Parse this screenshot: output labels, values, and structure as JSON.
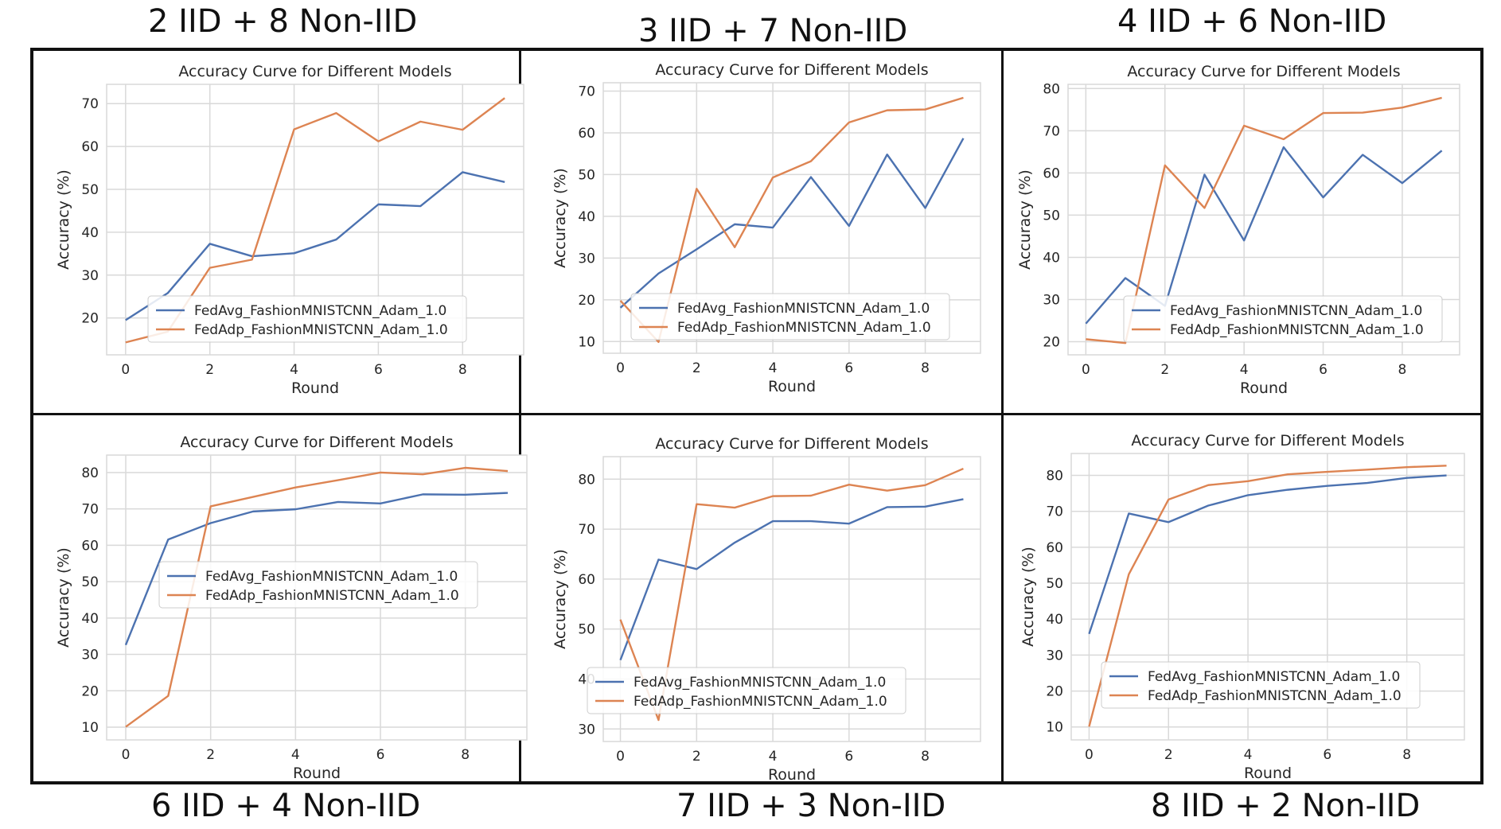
{
  "panel_titles": [
    "2 IID + 8 Non-IID",
    "3 IID + 7 Non-IID",
    "4 IID + 6 Non-IID",
    "6 IID + 4 Non-IID",
    "7 IID + 3 Non-IID",
    "8 IID + 2 Non-IID"
  ],
  "colors": {
    "fedavg": "#4c72b0",
    "fedadp": "#dd8452",
    "grid": "#d9d9d9",
    "frame": "#111111"
  },
  "chart_data": [
    {
      "type": "line",
      "title": "Accuracy Curve for Different Models",
      "xlabel": "Round",
      "ylabel": "Accuracy (%)",
      "x": [
        0,
        1,
        2,
        3,
        4,
        5,
        6,
        7,
        8,
        9
      ],
      "xticks": [
        "0",
        "2",
        "4",
        "6",
        "8"
      ],
      "yticks": [
        "20",
        "30",
        "40",
        "50",
        "60",
        "70"
      ],
      "xlim": [
        -0.45,
        9.45
      ],
      "ylim": [
        11.4,
        74.5
      ],
      "grid": true,
      "legend_position": "lower-right",
      "series": [
        {
          "name": "FedAvg_FashionMNISTCNN_Adam_1.0",
          "values": [
            19.5,
            25.8,
            37.3,
            34.4,
            35.1,
            38.3,
            46.5,
            46.1,
            54.0,
            51.7
          ]
        },
        {
          "name": "FedAdp_FashionMNISTCNN_Adam_1.0",
          "values": [
            14.3,
            16.8,
            31.7,
            33.6,
            64.0,
            67.8,
            61.2,
            65.8,
            63.9,
            71.3
          ]
        }
      ]
    },
    {
      "type": "line",
      "title": "Accuracy Curve for Different Models",
      "xlabel": "Round",
      "ylabel": "Accuracy (%)",
      "x": [
        0,
        1,
        2,
        3,
        4,
        5,
        6,
        7,
        8,
        9
      ],
      "xticks": [
        "0",
        "2",
        "4",
        "6",
        "8"
      ],
      "yticks": [
        "10",
        "20",
        "30",
        "40",
        "50",
        "60",
        "70"
      ],
      "xlim": [
        -0.45,
        9.45
      ],
      "ylim": [
        7.2,
        72.0
      ],
      "grid": true,
      "legend_position": "lower-right",
      "series": [
        {
          "name": "FedAvg_FashionMNISTCNN_Adam_1.0",
          "values": [
            18.1,
            26.3,
            32.1,
            38.1,
            37.3,
            49.4,
            37.7,
            54.8,
            42.0,
            58.7
          ]
        },
        {
          "name": "FedAdp_FashionMNISTCNN_Adam_1.0",
          "values": [
            19.8,
            9.9,
            46.6,
            32.6,
            49.3,
            53.2,
            62.5,
            65.4,
            65.6,
            68.4
          ]
        }
      ]
    },
    {
      "type": "line",
      "title": "Accuracy Curve for Different Models",
      "xlabel": "Round",
      "ylabel": "Accuracy (%)",
      "x": [
        0,
        1,
        2,
        3,
        4,
        5,
        6,
        7,
        8,
        9
      ],
      "xticks": [
        "0",
        "2",
        "4",
        "6",
        "8"
      ],
      "yticks": [
        "20",
        "30",
        "40",
        "50",
        "60",
        "70",
        "80"
      ],
      "xlim": [
        -0.45,
        9.45
      ],
      "ylim": [
        16.9,
        81.0
      ],
      "grid": true,
      "legend_position": "lower-right",
      "series": [
        {
          "name": "FedAvg_FashionMNISTCNN_Adam_1.0",
          "values": [
            24.3,
            35.1,
            28.5,
            59.6,
            44.0,
            66.1,
            54.2,
            64.3,
            57.6,
            65.3
          ]
        },
        {
          "name": "FedAdp_FashionMNISTCNN_Adam_1.0",
          "values": [
            20.6,
            19.7,
            61.8,
            51.7,
            71.2,
            68.0,
            74.2,
            74.3,
            75.5,
            77.8
          ]
        }
      ]
    },
    {
      "type": "line",
      "title": "Accuracy Curve for Different Models",
      "xlabel": "Round",
      "ylabel": "Accuracy (%)",
      "x": [
        0,
        1,
        2,
        3,
        4,
        5,
        6,
        7,
        8,
        9
      ],
      "xticks": [
        "0",
        "2",
        "4",
        "6",
        "8"
      ],
      "yticks": [
        "10",
        "20",
        "30",
        "40",
        "50",
        "60",
        "70",
        "80"
      ],
      "xlim": [
        -0.45,
        9.45
      ],
      "ylim": [
        6.5,
        84.8
      ],
      "grid": true,
      "legend_position": "center-right",
      "series": [
        {
          "name": "FedAvg_FashionMNISTCNN_Adam_1.0",
          "values": [
            32.6,
            61.6,
            66.1,
            69.3,
            69.9,
            71.9,
            71.5,
            74.0,
            73.9,
            74.4
          ]
        },
        {
          "name": "FedAdp_FashionMNISTCNN_Adam_1.0",
          "values": [
            10.1,
            18.6,
            70.7,
            73.3,
            75.9,
            77.9,
            80.0,
            79.5,
            81.3,
            80.4
          ]
        }
      ]
    },
    {
      "type": "line",
      "title": "Accuracy Curve for Different Models",
      "xlabel": "Round",
      "ylabel": "Accuracy (%)",
      "x": [
        0,
        1,
        2,
        3,
        4,
        5,
        6,
        7,
        8,
        9
      ],
      "xticks": [
        "0",
        "2",
        "4",
        "6",
        "8"
      ],
      "yticks": [
        "30",
        "40",
        "50",
        "60",
        "70",
        "80"
      ],
      "xlim": [
        -0.45,
        9.45
      ],
      "ylim": [
        27.5,
        84.5
      ],
      "grid": true,
      "legend_position": "lower-right",
      "series": [
        {
          "name": "FedAvg_FashionMNISTCNN_Adam_1.0",
          "values": [
            43.8,
            63.9,
            62.0,
            67.3,
            71.6,
            71.6,
            71.1,
            74.4,
            74.5,
            76.0
          ]
        },
        {
          "name": "FedAdp_FashionMNISTCNN_Adam_1.0",
          "values": [
            51.9,
            31.8,
            75.0,
            74.3,
            76.6,
            76.7,
            78.9,
            77.7,
            78.8,
            82.1
          ]
        }
      ]
    },
    {
      "type": "line",
      "title": "Accuracy Curve for Different Models",
      "xlabel": "Round",
      "ylabel": "Accuracy (%)",
      "x": [
        0,
        1,
        2,
        3,
        4,
        5,
        6,
        7,
        8,
        9
      ],
      "xticks": [
        "0",
        "2",
        "4",
        "6",
        "8"
      ],
      "yticks": [
        "10",
        "20",
        "30",
        "40",
        "50",
        "60",
        "70",
        "80"
      ],
      "xlim": [
        -0.45,
        9.45
      ],
      "ylim": [
        6.4,
        86.1
      ],
      "grid": true,
      "legend_position": "lower-right",
      "series": [
        {
          "name": "FedAvg_FashionMNISTCNN_Adam_1.0",
          "values": [
            35.9,
            69.4,
            67.0,
            71.6,
            74.5,
            76.0,
            77.1,
            77.9,
            79.3,
            80.0
          ]
        },
        {
          "name": "FedAdp_FashionMNISTCNN_Adam_1.0",
          "values": [
            10.1,
            52.5,
            73.3,
            77.3,
            78.4,
            80.3,
            81.0,
            81.6,
            82.3,
            82.7
          ]
        }
      ]
    }
  ]
}
